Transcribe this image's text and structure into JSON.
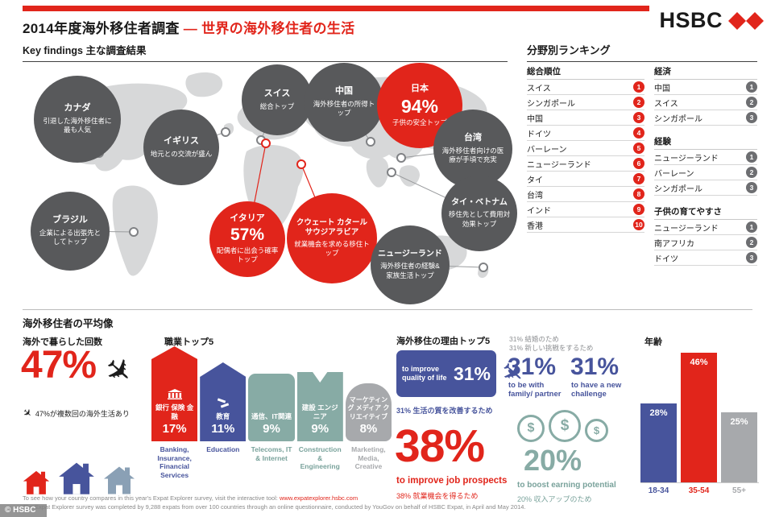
{
  "header": {
    "title_black": "2014年度海外移住者調査",
    "title_dash": "—",
    "title_red": "世界の海外移住者の生活",
    "brand": "HSBC"
  },
  "key_findings": {
    "heading_en": "Key findings",
    "heading_jp": "主な調査結果",
    "callouts": [
      {
        "name": "カナダ",
        "text": "引退した海外移住者に最も人気"
      },
      {
        "name": "イギリス",
        "text": "地元との交流が盛ん"
      },
      {
        "name": "スイス",
        "text": "総合トップ"
      },
      {
        "name": "中国",
        "text": "海外移住者の所得トップ"
      },
      {
        "name": "日本",
        "value": "94%",
        "text": "子供の安全トップ"
      },
      {
        "name": "台湾",
        "text": "海外移住者向けの医療が手頃で充実"
      },
      {
        "name": "ブラジル",
        "text": "企業による出張先としてトップ"
      },
      {
        "name": "イタリア",
        "value": "57%",
        "text": "配偶者に出会う確率トップ"
      },
      {
        "name": "クウェート カタール サウジアラビア",
        "text": "就業機会を求める移住トップ"
      },
      {
        "name": "タイ・ベトナム",
        "text": "移住先として費用対効果トップ"
      },
      {
        "name": "ニュージーランド",
        "text": "海外移住者の経験&家族生活トップ"
      }
    ]
  },
  "rankings": {
    "heading": "分野別ランキング",
    "overall": {
      "title": "総合順位",
      "items": [
        {
          "name": "スイス",
          "rank": "1"
        },
        {
          "name": "シンガポール",
          "rank": "2"
        },
        {
          "name": "中国",
          "rank": "3"
        },
        {
          "name": "ドイツ",
          "rank": "4"
        },
        {
          "name": "バーレーン",
          "rank": "5"
        },
        {
          "name": "ニュージーランド",
          "rank": "6"
        },
        {
          "name": "タイ",
          "rank": "7"
        },
        {
          "name": "台湾",
          "rank": "8"
        },
        {
          "name": "インド",
          "rank": "9"
        },
        {
          "name": "香港",
          "rank": "10"
        }
      ]
    },
    "economy": {
      "title": "経済",
      "items": [
        {
          "name": "中国",
          "rank": "1"
        },
        {
          "name": "スイス",
          "rank": "2"
        },
        {
          "name": "シンガポール",
          "rank": "3"
        }
      ]
    },
    "experience": {
      "title": "経験",
      "items": [
        {
          "name": "ニュージーランド",
          "rank": "1"
        },
        {
          "name": "バーレーン",
          "rank": "2"
        },
        {
          "name": "シンガポール",
          "rank": "3"
        }
      ]
    },
    "children": {
      "title": "子供の育てやすさ",
      "items": [
        {
          "name": "ニュージーランド",
          "rank": "1"
        },
        {
          "name": "南アフリカ",
          "rank": "2"
        },
        {
          "name": "ドイツ",
          "rank": "3"
        }
      ]
    }
  },
  "profile": {
    "heading": "海外移住者の平均像",
    "times_abroad": {
      "title": "海外で暮らした回数",
      "value": "47%",
      "caption": "47%が複数回の海外生活あり"
    },
    "jobs": {
      "title": "職業トップ5",
      "items": [
        {
          "label_jp": "銀行 保険 金融",
          "value": "17%",
          "label_en": "Banking, Insurance, Financial Services"
        },
        {
          "label_jp": "教育",
          "value": "11%",
          "label_en": "Education"
        },
        {
          "label_jp": "通信、IT関連",
          "value": "9%",
          "label_en": "Telecoms, IT & Internet"
        },
        {
          "label_jp": "建設 エンジニア",
          "value": "9%",
          "label_en": "Construction & Engineering"
        },
        {
          "label_jp": "マーケティング メディア クリエイティブ",
          "value": "8%",
          "label_en": "Marketing, Media, Creative"
        }
      ]
    },
    "reasons": {
      "title": "海外移住の理由トップ5",
      "quality_label": "to improve quality of life",
      "quality_value": "31%",
      "quality_caption": "31% 生活の質を改善するため",
      "note_marriage": "31% 結婚のため",
      "note_challenge": "31% 新しい挑戦をするため",
      "family_value": "31%",
      "family_label": "to be with family/ partner",
      "challenge_value": "31%",
      "challenge_label": "to have a new challenge",
      "job_value": "38%",
      "job_label": "to improve job prospects",
      "job_caption": "38% 就業機会を得るため",
      "earning_value": "20%",
      "earning_label": "to boost earning potential",
      "earning_caption": "20% 収入アップのため",
      "dollar_sign": "$"
    },
    "age": {
      "title": "年齢",
      "bars": [
        {
          "label": "18-34",
          "value": "28%",
          "pct": 28
        },
        {
          "label": "35-54",
          "value": "46%",
          "pct": 46
        },
        {
          "label": "55+",
          "value": "25%",
          "pct": 25
        }
      ]
    }
  },
  "footer": {
    "line1": "To see how your country compares in this year's Expat Explorer survey, visit the interactive tool: ",
    "link": "www.expatexplorer.hsbc.com",
    "line2": "The Expat Explorer survey was completed by 9,288 expats from over 100 countries through an online questionnaire, conducted by YouGov on behalf of HSBC Expat, in April and May 2014.",
    "watermark": "© HSBC"
  },
  "chart_data": {
    "type": "bar",
    "title": "年齢 (age distribution of expats)",
    "categories": [
      "18-34",
      "35-54",
      "55+"
    ],
    "values": [
      28,
      46,
      25
    ],
    "unit": "%",
    "ylim": [
      0,
      50
    ]
  },
  "colors": {
    "red": "#e1251b",
    "blue": "#47549c",
    "teal": "#87aba5",
    "gray_dark": "#58595b",
    "gray_mid": "#6d6e71",
    "gray_light": "#a7a9ac"
  }
}
